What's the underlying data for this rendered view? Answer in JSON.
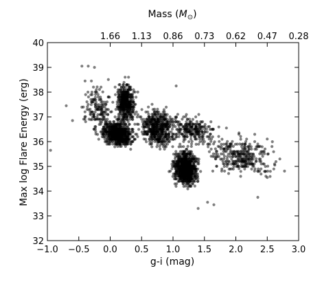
{
  "chart_data": {
    "type": "scatter",
    "xlabel": "g-i (mag)",
    "ylabel": "Max log Flare Energy (erg)",
    "top_axis_label_prefix": "Mass (",
    "top_axis_label_symbol": "M",
    "top_axis_label_subscript": "⊙",
    "top_axis_label_suffix": ")",
    "xlim": [
      -1.0,
      3.0
    ],
    "ylim": [
      32,
      40
    ],
    "x_ticks": [
      -1.0,
      -0.5,
      0.0,
      0.5,
      1.0,
      1.5,
      2.0,
      2.5,
      3.0
    ],
    "x_tick_labels": [
      "−1.0",
      "−0.5",
      "0.0",
      "0.5",
      "1.0",
      "1.5",
      "2.0",
      "2.5",
      "3.0"
    ],
    "y_ticks": [
      32,
      33,
      34,
      35,
      36,
      37,
      38,
      39,
      40
    ],
    "y_tick_labels": [
      "32",
      "33",
      "34",
      "35",
      "36",
      "37",
      "38",
      "39",
      "40"
    ],
    "top_ticks_x": [
      0.0,
      0.5,
      1.0,
      1.5,
      2.0,
      2.5,
      3.0
    ],
    "top_tick_labels": [
      "1.66",
      "1.13",
      "0.86",
      "0.73",
      "0.62",
      "0.47",
      "0.28"
    ],
    "grid": false,
    "point_color": "#000000",
    "point_opacity": 0.5,
    "clusters": [
      {
        "x_range": [
          -0.2,
          0.45
        ],
        "y_range": [
          35.7,
          36.9
        ],
        "count": 700
      },
      {
        "x_range": [
          0.05,
          0.45
        ],
        "y_range": [
          36.5,
          38.6
        ],
        "count": 450
      },
      {
        "x_range": [
          0.95,
          1.45
        ],
        "y_range": [
          34.0,
          35.9
        ],
        "count": 800
      },
      {
        "x_range": [
          0.4,
          1.1
        ],
        "y_range": [
          35.5,
          37.6
        ],
        "count": 500
      },
      {
        "x_range": [
          -0.5,
          0.1
        ],
        "y_range": [
          36.0,
          38.6
        ],
        "count": 160
      },
      {
        "x_range": [
          1.4,
          2.75
        ],
        "y_range": [
          34.4,
          36.5
        ],
        "count": 320
      },
      {
        "x_range": [
          0.8,
          1.8
        ],
        "y_range": [
          35.8,
          37.2
        ],
        "count": 250
      }
    ],
    "outliers": [
      {
        "x": -0.95,
        "y": 35.65
      },
      {
        "x": -0.7,
        "y": 37.45
      },
      {
        "x": -0.6,
        "y": 36.85
      },
      {
        "x": -0.45,
        "y": 39.05
      },
      {
        "x": -0.35,
        "y": 39.05
      },
      {
        "x": -0.25,
        "y": 39.0
      },
      {
        "x": -0.4,
        "y": 38.45
      },
      {
        "x": -0.3,
        "y": 38.45
      },
      {
        "x": 1.05,
        "y": 38.25
      },
      {
        "x": 1.55,
        "y": 33.55
      },
      {
        "x": 1.65,
        "y": 33.45
      },
      {
        "x": 1.4,
        "y": 33.3
      },
      {
        "x": 2.35,
        "y": 33.75
      },
      {
        "x": 2.5,
        "y": 34.55
      },
      {
        "x": 2.7,
        "y": 35.3
      },
      {
        "x": 2.55,
        "y": 34.8
      },
      {
        "x": 2.05,
        "y": 36.35
      },
      {
        "x": 1.85,
        "y": 36.55
      },
      {
        "x": 2.2,
        "y": 35.6
      },
      {
        "x": 2.62,
        "y": 35.05
      }
    ]
  }
}
